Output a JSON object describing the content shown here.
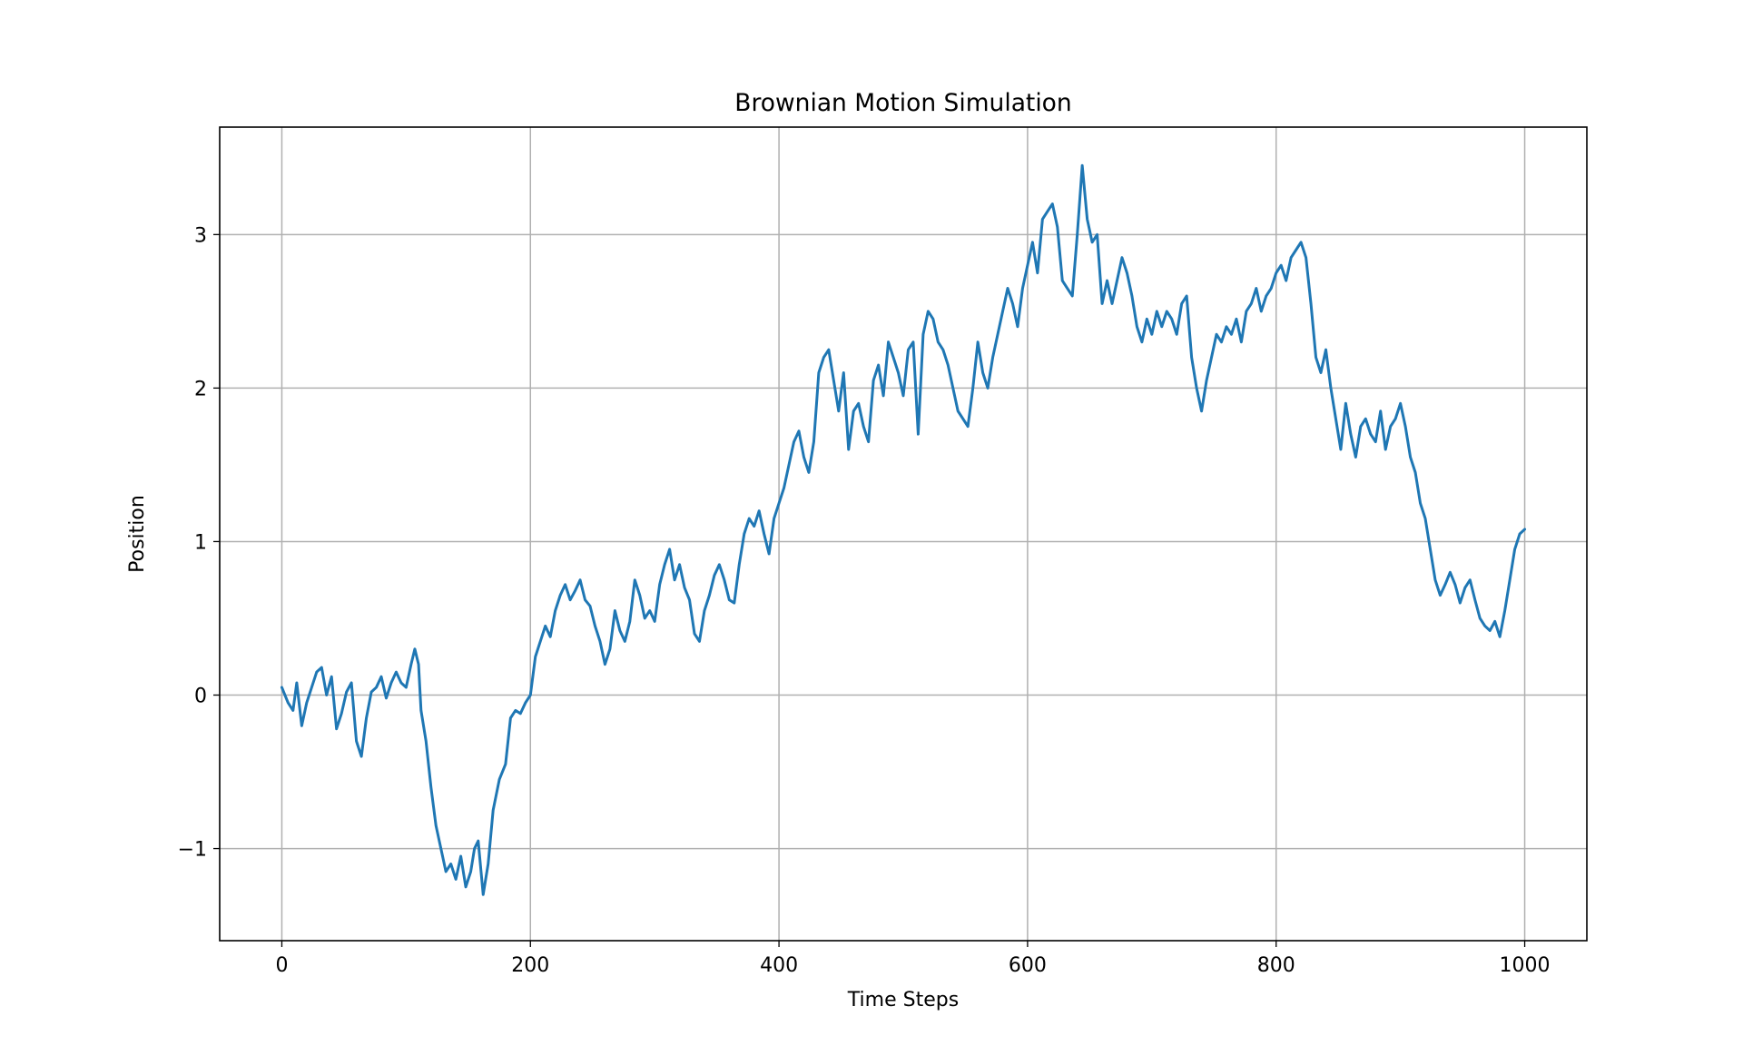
{
  "chart_data": {
    "type": "line",
    "title": "Brownian Motion Simulation",
    "xlabel": "Time Steps",
    "ylabel": "Position",
    "xlim": [
      -50,
      1050
    ],
    "ylim": [
      -1.6,
      3.7
    ],
    "xticks": [
      0,
      200,
      400,
      600,
      800,
      1000
    ],
    "xtick_labels": [
      "0",
      "200",
      "400",
      "600",
      "800",
      "1000"
    ],
    "yticks": [
      -1,
      0,
      1,
      2,
      3
    ],
    "ytick_labels": [
      "−1",
      "0",
      "1",
      "2",
      "3"
    ],
    "grid": true,
    "legend": "none",
    "series": [
      {
        "color": "#1f77b4",
        "points": [
          [
            0,
            0.05
          ],
          [
            5,
            -0.05
          ],
          [
            9,
            -0.1
          ],
          [
            12,
            0.08
          ],
          [
            16,
            -0.2
          ],
          [
            20,
            -0.05
          ],
          [
            24,
            0.05
          ],
          [
            28,
            0.15
          ],
          [
            32,
            0.18
          ],
          [
            36,
            0.0
          ],
          [
            40,
            0.12
          ],
          [
            44,
            -0.22
          ],
          [
            48,
            -0.12
          ],
          [
            52,
            0.02
          ],
          [
            56,
            0.08
          ],
          [
            60,
            -0.3
          ],
          [
            64,
            -0.4
          ],
          [
            68,
            -0.15
          ],
          [
            72,
            0.02
          ],
          [
            76,
            0.05
          ],
          [
            80,
            0.12
          ],
          [
            84,
            -0.02
          ],
          [
            88,
            0.08
          ],
          [
            92,
            0.15
          ],
          [
            96,
            0.08
          ],
          [
            100,
            0.05
          ],
          [
            104,
            0.2
          ],
          [
            107,
            0.3
          ],
          [
            110,
            0.2
          ],
          [
            112,
            -0.1
          ],
          [
            116,
            -0.3
          ],
          [
            120,
            -0.6
          ],
          [
            124,
            -0.85
          ],
          [
            128,
            -1.0
          ],
          [
            132,
            -1.15
          ],
          [
            136,
            -1.1
          ],
          [
            140,
            -1.2
          ],
          [
            144,
            -1.05
          ],
          [
            148,
            -1.25
          ],
          [
            152,
            -1.15
          ],
          [
            155,
            -1.0
          ],
          [
            158,
            -0.95
          ],
          [
            162,
            -1.3
          ],
          [
            166,
            -1.1
          ],
          [
            170,
            -0.75
          ],
          [
            175,
            -0.55
          ],
          [
            180,
            -0.45
          ],
          [
            184,
            -0.15
          ],
          [
            188,
            -0.1
          ],
          [
            192,
            -0.12
          ],
          [
            196,
            -0.05
          ],
          [
            200,
            0.0
          ],
          [
            204,
            0.25
          ],
          [
            208,
            0.35
          ],
          [
            212,
            0.45
          ],
          [
            216,
            0.38
          ],
          [
            220,
            0.55
          ],
          [
            224,
            0.65
          ],
          [
            228,
            0.72
          ],
          [
            232,
            0.62
          ],
          [
            236,
            0.68
          ],
          [
            240,
            0.75
          ],
          [
            244,
            0.62
          ],
          [
            248,
            0.58
          ],
          [
            252,
            0.45
          ],
          [
            256,
            0.35
          ],
          [
            260,
            0.2
          ],
          [
            264,
            0.3
          ],
          [
            268,
            0.55
          ],
          [
            272,
            0.42
          ],
          [
            276,
            0.35
          ],
          [
            280,
            0.48
          ],
          [
            284,
            0.75
          ],
          [
            288,
            0.65
          ],
          [
            292,
            0.5
          ],
          [
            296,
            0.55
          ],
          [
            300,
            0.48
          ],
          [
            304,
            0.72
          ],
          [
            308,
            0.85
          ],
          [
            312,
            0.95
          ],
          [
            316,
            0.75
          ],
          [
            320,
            0.85
          ],
          [
            324,
            0.7
          ],
          [
            328,
            0.62
          ],
          [
            332,
            0.4
          ],
          [
            336,
            0.35
          ],
          [
            340,
            0.55
          ],
          [
            344,
            0.65
          ],
          [
            348,
            0.78
          ],
          [
            352,
            0.85
          ],
          [
            356,
            0.75
          ],
          [
            360,
            0.62
          ],
          [
            364,
            0.6
          ],
          [
            368,
            0.85
          ],
          [
            372,
            1.05
          ],
          [
            376,
            1.15
          ],
          [
            380,
            1.1
          ],
          [
            384,
            1.2
          ],
          [
            388,
            1.05
          ],
          [
            392,
            0.92
          ],
          [
            396,
            1.15
          ],
          [
            400,
            1.25
          ],
          [
            404,
            1.35
          ],
          [
            408,
            1.5
          ],
          [
            412,
            1.65
          ],
          [
            416,
            1.72
          ],
          [
            420,
            1.55
          ],
          [
            424,
            1.45
          ],
          [
            428,
            1.65
          ],
          [
            432,
            2.1
          ],
          [
            436,
            2.2
          ],
          [
            440,
            2.25
          ],
          [
            444,
            2.05
          ],
          [
            448,
            1.85
          ],
          [
            452,
            2.1
          ],
          [
            456,
            1.6
          ],
          [
            460,
            1.85
          ],
          [
            464,
            1.9
          ],
          [
            468,
            1.75
          ],
          [
            472,
            1.65
          ],
          [
            476,
            2.05
          ],
          [
            480,
            2.15
          ],
          [
            484,
            1.95
          ],
          [
            488,
            2.3
          ],
          [
            492,
            2.2
          ],
          [
            496,
            2.1
          ],
          [
            500,
            1.95
          ],
          [
            504,
            2.25
          ],
          [
            508,
            2.3
          ],
          [
            512,
            1.7
          ],
          [
            516,
            2.35
          ],
          [
            520,
            2.5
          ],
          [
            524,
            2.45
          ],
          [
            528,
            2.3
          ],
          [
            532,
            2.25
          ],
          [
            536,
            2.15
          ],
          [
            540,
            2.0
          ],
          [
            544,
            1.85
          ],
          [
            548,
            1.8
          ],
          [
            552,
            1.75
          ],
          [
            556,
            2.0
          ],
          [
            560,
            2.3
          ],
          [
            564,
            2.1
          ],
          [
            568,
            2.0
          ],
          [
            572,
            2.2
          ],
          [
            576,
            2.35
          ],
          [
            580,
            2.5
          ],
          [
            584,
            2.65
          ],
          [
            588,
            2.55
          ],
          [
            592,
            2.4
          ],
          [
            596,
            2.65
          ],
          [
            600,
            2.8
          ],
          [
            604,
            2.95
          ],
          [
            608,
            2.75
          ],
          [
            612,
            3.1
          ],
          [
            616,
            3.15
          ],
          [
            620,
            3.2
          ],
          [
            624,
            3.05
          ],
          [
            628,
            2.7
          ],
          [
            632,
            2.65
          ],
          [
            636,
            2.6
          ],
          [
            640,
            3.0
          ],
          [
            644,
            3.45
          ],
          [
            648,
            3.1
          ],
          [
            652,
            2.95
          ],
          [
            656,
            3.0
          ],
          [
            660,
            2.55
          ],
          [
            664,
            2.7
          ],
          [
            668,
            2.55
          ],
          [
            672,
            2.7
          ],
          [
            676,
            2.85
          ],
          [
            680,
            2.75
          ],
          [
            684,
            2.6
          ],
          [
            688,
            2.4
          ],
          [
            692,
            2.3
          ],
          [
            696,
            2.45
          ],
          [
            700,
            2.35
          ],
          [
            704,
            2.5
          ],
          [
            708,
            2.4
          ],
          [
            712,
            2.5
          ],
          [
            716,
            2.45
          ],
          [
            720,
            2.35
          ],
          [
            724,
            2.55
          ],
          [
            728,
            2.6
          ],
          [
            732,
            2.2
          ],
          [
            736,
            2.0
          ],
          [
            740,
            1.85
          ],
          [
            744,
            2.05
          ],
          [
            748,
            2.2
          ],
          [
            752,
            2.35
          ],
          [
            756,
            2.3
          ],
          [
            760,
            2.4
          ],
          [
            764,
            2.35
          ],
          [
            768,
            2.45
          ],
          [
            772,
            2.3
          ],
          [
            776,
            2.5
          ],
          [
            780,
            2.55
          ],
          [
            784,
            2.65
          ],
          [
            788,
            2.5
          ],
          [
            792,
            2.6
          ],
          [
            796,
            2.65
          ],
          [
            800,
            2.75
          ],
          [
            804,
            2.8
          ],
          [
            808,
            2.7
          ],
          [
            812,
            2.85
          ],
          [
            816,
            2.9
          ],
          [
            820,
            2.95
          ],
          [
            824,
            2.85
          ],
          [
            828,
            2.55
          ],
          [
            832,
            2.2
          ],
          [
            836,
            2.1
          ],
          [
            840,
            2.25
          ],
          [
            844,
            2.0
          ],
          [
            848,
            1.8
          ],
          [
            852,
            1.6
          ],
          [
            856,
            1.9
          ],
          [
            860,
            1.7
          ],
          [
            864,
            1.55
          ],
          [
            868,
            1.75
          ],
          [
            872,
            1.8
          ],
          [
            876,
            1.7
          ],
          [
            880,
            1.65
          ],
          [
            884,
            1.85
          ],
          [
            888,
            1.6
          ],
          [
            892,
            1.75
          ],
          [
            896,
            1.8
          ],
          [
            900,
            1.9
          ],
          [
            904,
            1.75
          ],
          [
            908,
            1.55
          ],
          [
            912,
            1.45
          ],
          [
            916,
            1.25
          ],
          [
            920,
            1.15
          ],
          [
            924,
            0.95
          ],
          [
            928,
            0.75
          ],
          [
            932,
            0.65
          ],
          [
            936,
            0.72
          ],
          [
            940,
            0.8
          ],
          [
            944,
            0.72
          ],
          [
            948,
            0.6
          ],
          [
            952,
            0.7
          ],
          [
            956,
            0.75
          ],
          [
            960,
            0.62
          ],
          [
            964,
            0.5
          ],
          [
            968,
            0.45
          ],
          [
            972,
            0.42
          ],
          [
            976,
            0.48
          ],
          [
            980,
            0.38
          ],
          [
            984,
            0.55
          ],
          [
            988,
            0.75
          ],
          [
            992,
            0.95
          ],
          [
            996,
            1.05
          ],
          [
            1000,
            1.08
          ]
        ]
      }
    ]
  }
}
